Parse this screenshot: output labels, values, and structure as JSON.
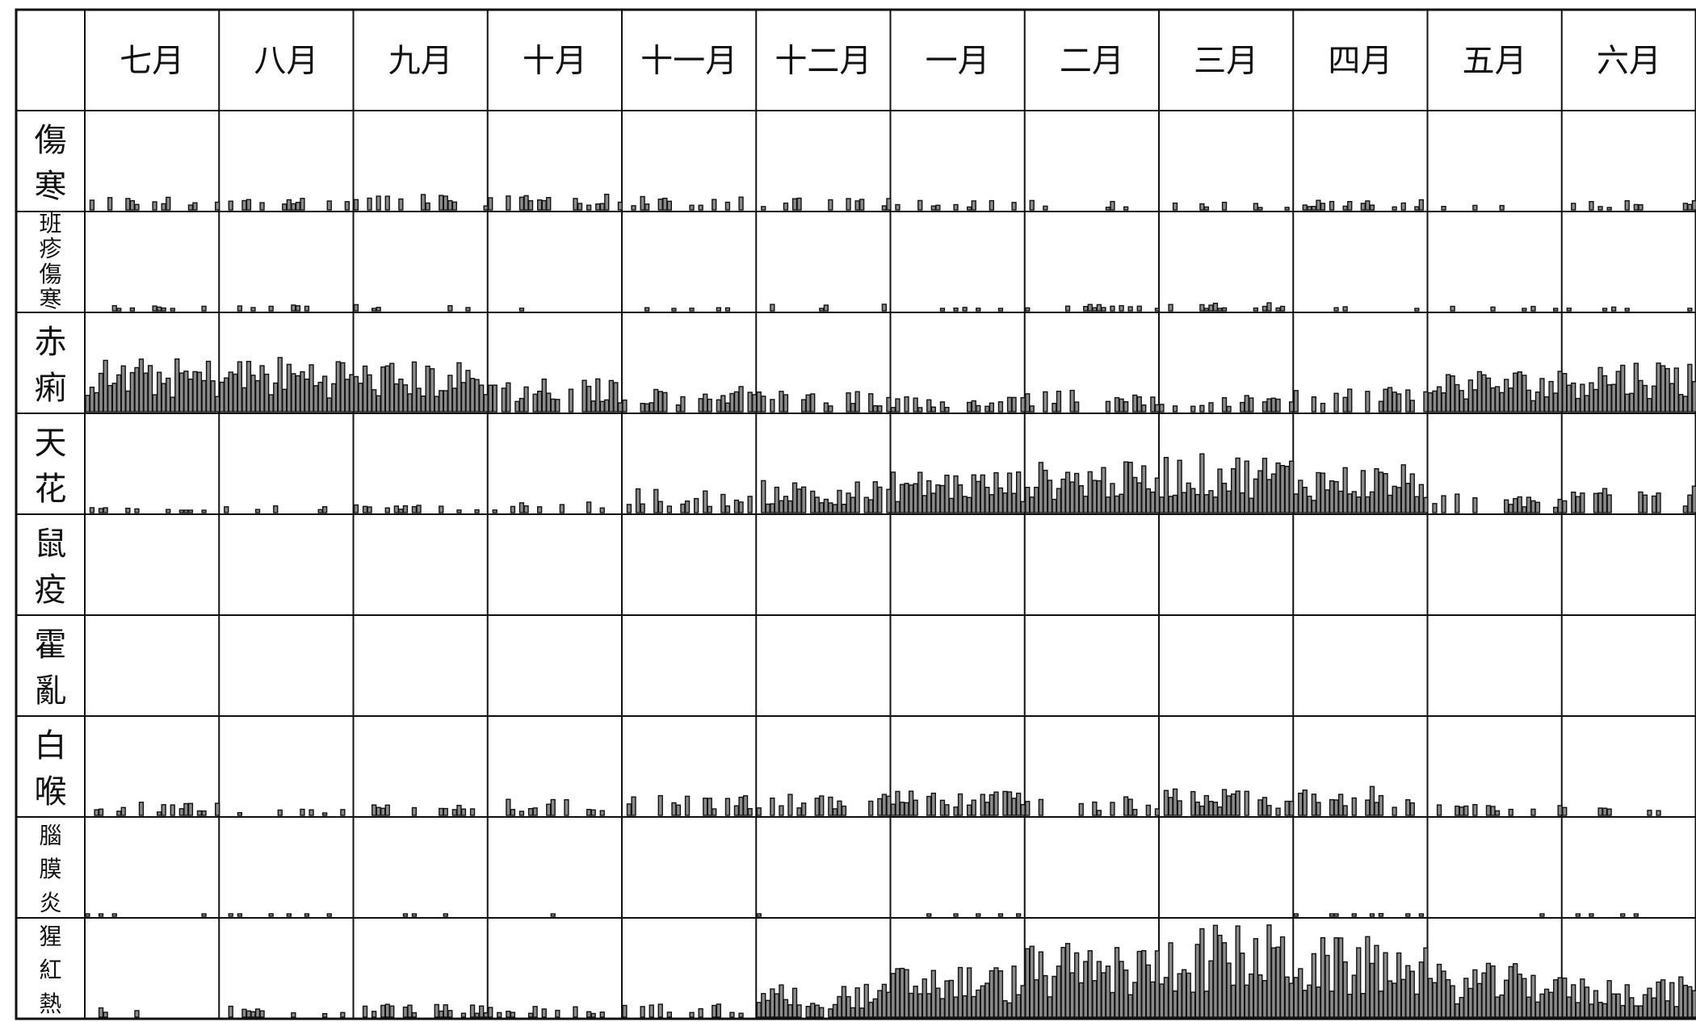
{
  "chart_data": {
    "type": "bar",
    "title": "",
    "xlabel": "",
    "ylabel": "",
    "months": [
      "七月",
      "八月",
      "九月",
      "十月",
      "十一月",
      "十二月",
      "一月",
      "二月",
      "三月",
      "四月",
      "五月",
      "六月"
    ],
    "grid": true,
    "series": [
      {
        "label_lines": [
          "傷",
          "寒"
        ],
        "level_by_month": [
          0.1,
          0.1,
          0.12,
          0.14,
          0.1,
          0.09,
          0.08,
          0.07,
          0.06,
          0.08,
          0.05,
          0.07
        ]
      },
      {
        "label_lines": [
          "班",
          "疹",
          "傷",
          "寒"
        ],
        "level_by_month": [
          0.04,
          0.05,
          0.05,
          0.02,
          0.03,
          0.05,
          0.03,
          0.05,
          0.07,
          0.04,
          0.04,
          0.03
        ]
      },
      {
        "label_lines": [
          "赤",
          "痢"
        ],
        "level_by_month": [
          0.4,
          0.42,
          0.38,
          0.25,
          0.2,
          0.16,
          0.12,
          0.16,
          0.12,
          0.18,
          0.32,
          0.4
        ]
      },
      {
        "label_lines": [
          "天",
          "花"
        ],
        "level_by_month": [
          0.04,
          0.05,
          0.06,
          0.08,
          0.18,
          0.24,
          0.32,
          0.38,
          0.44,
          0.36,
          0.14,
          0.2
        ]
      },
      {
        "label_lines": [
          "鼠",
          "疫"
        ],
        "level_by_month": [
          0,
          0,
          0,
          0,
          0,
          0,
          0,
          0,
          0,
          0,
          0,
          0
        ]
      },
      {
        "label_lines": [
          "霍",
          "亂"
        ],
        "level_by_month": [
          0,
          0,
          0,
          0,
          0,
          0,
          0,
          0,
          0,
          0,
          0,
          0
        ]
      },
      {
        "label_lines": [
          "白",
          "喉"
        ],
        "level_by_month": [
          0.1,
          0.05,
          0.08,
          0.12,
          0.15,
          0.16,
          0.18,
          0.14,
          0.2,
          0.22,
          0.1,
          0.06
        ]
      },
      {
        "label_lines": [
          "腦",
          "膜",
          "炎"
        ],
        "level_by_month": [
          0.02,
          0.02,
          0.02,
          0.03,
          0.0,
          0.01,
          0.01,
          0.0,
          0.0,
          0.02,
          0.02,
          0.01
        ]
      },
      {
        "label_lines": [
          "猩",
          "紅",
          "熱"
        ],
        "level_by_month": [
          0.08,
          0.1,
          0.1,
          0.08,
          0.1,
          0.25,
          0.4,
          0.55,
          0.7,
          0.6,
          0.4,
          0.3
        ]
      }
    ]
  }
}
